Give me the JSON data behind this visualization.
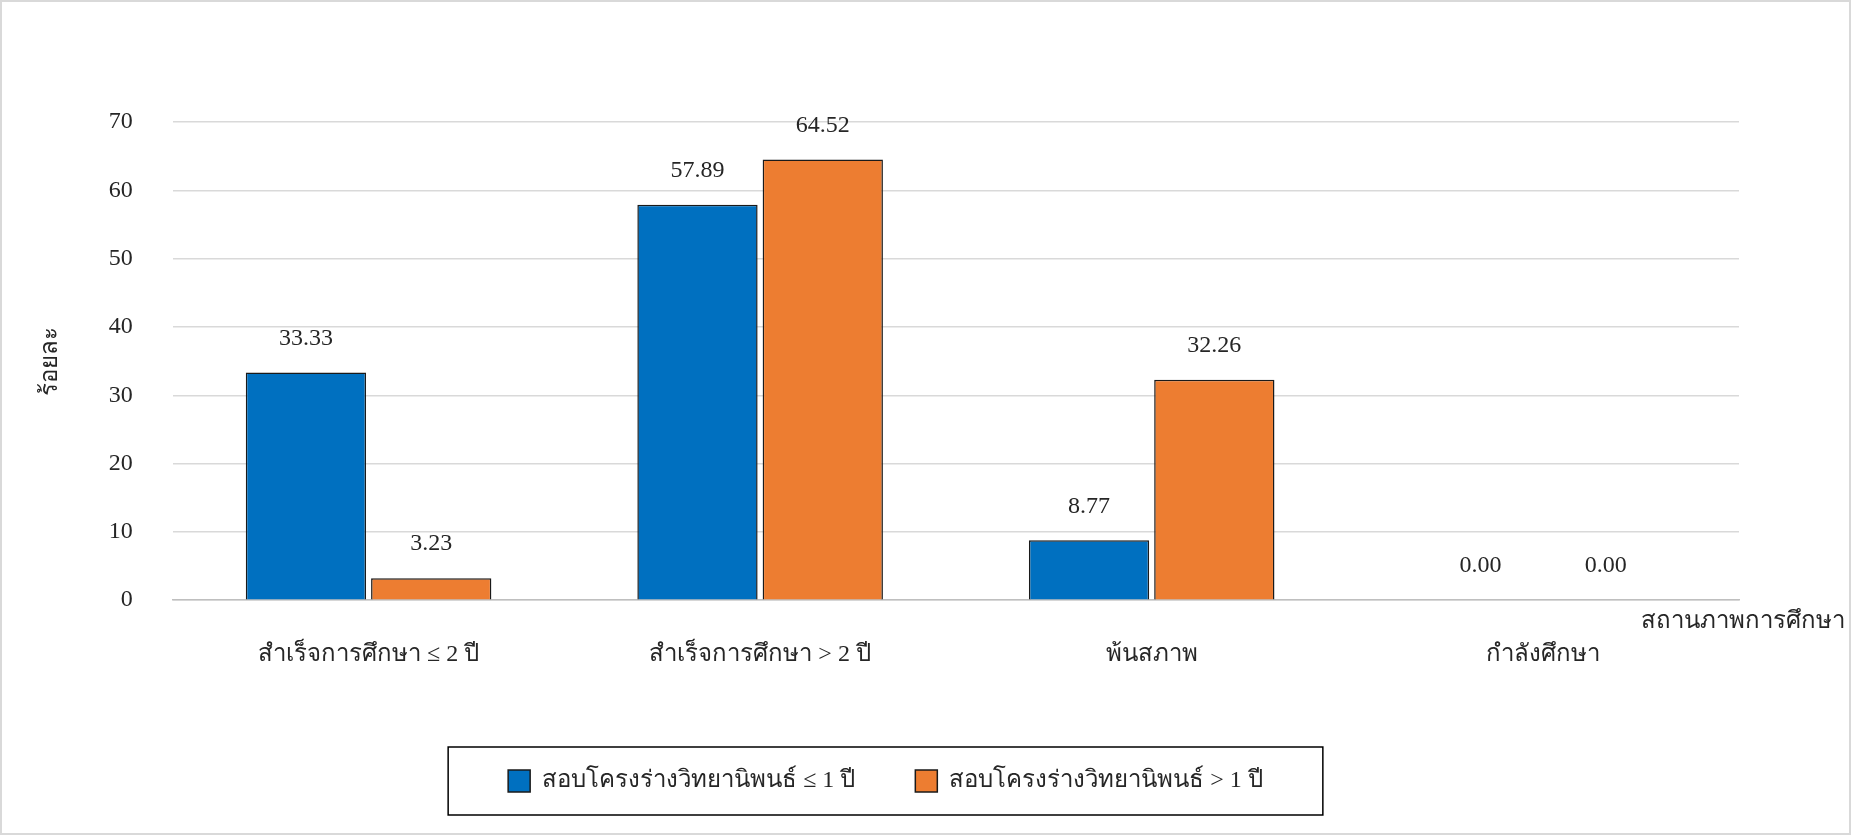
{
  "chart_data": {
    "type": "bar",
    "xlabel": "สถานภาพการศึกษา",
    "ylabel": "ร้อยละ",
    "categories": [
      "สำเร็จการศึกษา ≤ 2 ปี",
      "สำเร็จการศึกษา > 2 ปี",
      "พ้นสภาพ",
      "กำลังศึกษา"
    ],
    "series": [
      {
        "name": "สอบโครงร่างวิทยานิพนธ์ ≤ 1 ปี",
        "color": "#0070c0",
        "values": [
          33.33,
          57.89,
          8.77,
          0.0
        ]
      },
      {
        "name": "สอบโครงร่างวิทยานิพนธ์ > 1 ปี",
        "color": "#ed7d31",
        "values": [
          3.23,
          64.52,
          32.26,
          0.0
        ]
      }
    ],
    "value_labels": [
      [
        "33.33",
        "57.89",
        "8.77",
        "0.00"
      ],
      [
        "3.23",
        "64.52",
        "32.26",
        "0.00"
      ]
    ],
    "ylim": [
      0,
      70
    ],
    "yticks": [
      0,
      10,
      20,
      30,
      40,
      50,
      60,
      70
    ],
    "grid": "y",
    "legend": "bottom"
  }
}
